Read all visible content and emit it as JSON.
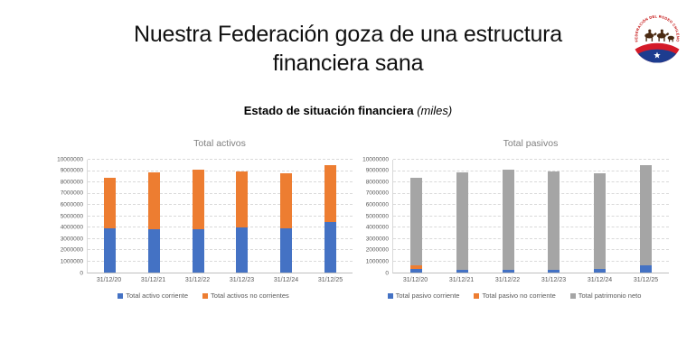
{
  "slide": {
    "title": "Nuestra Federación goza de una estructura financiera sana",
    "title_lines": [
      "Nuestra Federación goza de una estructura",
      "financiera sana"
    ],
    "subtitle_bold": "Estado de situación financiera",
    "subtitle_italic": "(miles)",
    "logo_text": "FEDERACIÓN DEL RODEO CHILENO"
  },
  "colors": {
    "bar_blue": "#4472C4",
    "bar_orange": "#ED7D31",
    "bar_gray": "#A5A5A5",
    "gridline": "#D9D9D9",
    "axis_text": "#595959",
    "chart_title": "#808080",
    "logo_red": "#D41A28",
    "logo_blue": "#1D3C8F"
  },
  "chart_data": [
    {
      "type": "bar",
      "stacked": true,
      "title": "Total activos",
      "categories": [
        "31/12/20",
        "31/12/21",
        "31/12/22",
        "31/12/23",
        "31/12/24",
        "31/12/25"
      ],
      "series": [
        {
          "name": "Total activo corriente",
          "color": "#4472C4",
          "values": [
            3900000,
            3850000,
            3850000,
            4000000,
            3950000,
            4450000
          ]
        },
        {
          "name": "Total activos no corrientes",
          "color": "#ED7D31",
          "values": [
            4500000,
            5050000,
            5250000,
            5000000,
            4850000,
            5050000
          ]
        }
      ],
      "ylim": [
        0,
        10000000
      ],
      "ytick_step": 1000000,
      "grid": true,
      "legend_position": "bottom"
    },
    {
      "type": "bar",
      "stacked": true,
      "title": "Total pasivos",
      "categories": [
        "31/12/20",
        "31/12/21",
        "31/12/22",
        "31/12/23",
        "31/12/24",
        "31/12/25"
      ],
      "series": [
        {
          "name": "Total pasivo corriente",
          "color": "#4472C4",
          "values": [
            350000,
            280000,
            280000,
            250000,
            330000,
            680000
          ]
        },
        {
          "name": "Total pasivo no corriente",
          "color": "#ED7D31",
          "values": [
            300000,
            0,
            0,
            0,
            0,
            0
          ]
        },
        {
          "name": "Total patrimonio neto",
          "color": "#A5A5A5",
          "values": [
            7750000,
            8620000,
            8820000,
            8750000,
            8470000,
            8820000
          ]
        }
      ],
      "ylim": [
        0,
        10000000
      ],
      "ytick_step": 1000000,
      "grid": true,
      "legend_position": "bottom"
    }
  ]
}
